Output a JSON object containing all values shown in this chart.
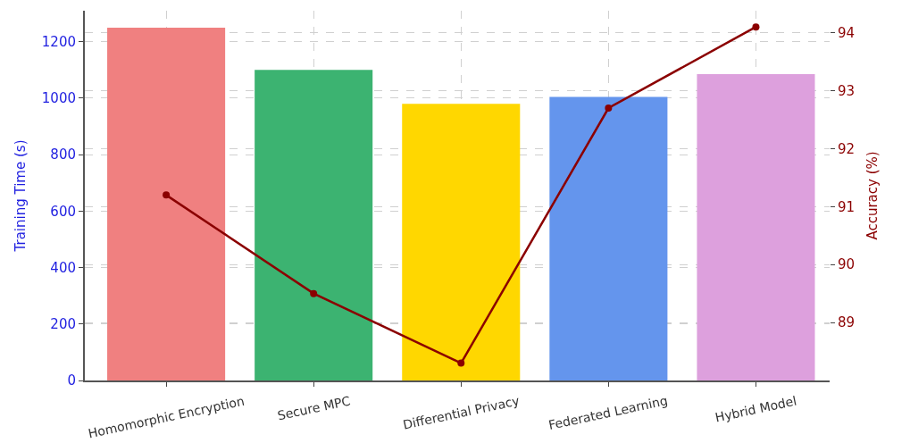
{
  "chart_data": {
    "type": "bar",
    "categories": [
      "Homomorphic Encryption",
      "Secure MPC",
      "Differential Privacy",
      "Federated Learning",
      "Hybrid Model"
    ],
    "series": [
      {
        "colors": [
          "#f08080",
          "#3cb371",
          "#ffd700",
          "#6495ed",
          "#dda0dd"
        ],
        "values": [
          1250,
          1100,
          980,
          1005,
          1085
        ]
      },
      {
        "type": "line",
        "axis": "y2",
        "color": "#8b0000",
        "values": [
          91.2,
          89.5,
          88.3,
          92.7,
          94.1
        ]
      }
    ],
    "ylabel": "Training Time (s)",
    "y2label": "Accuracy (%)",
    "ylim": [
      0,
      1310
    ],
    "yticks": [
      0,
      200,
      400,
      600,
      800,
      1000,
      1200
    ],
    "y2lim": [
      88.0,
      94.38
    ],
    "y2ticks": [
      89,
      90,
      91,
      92,
      93,
      94
    ],
    "grid": true,
    "marker": "circle",
    "line_style": "solid"
  }
}
